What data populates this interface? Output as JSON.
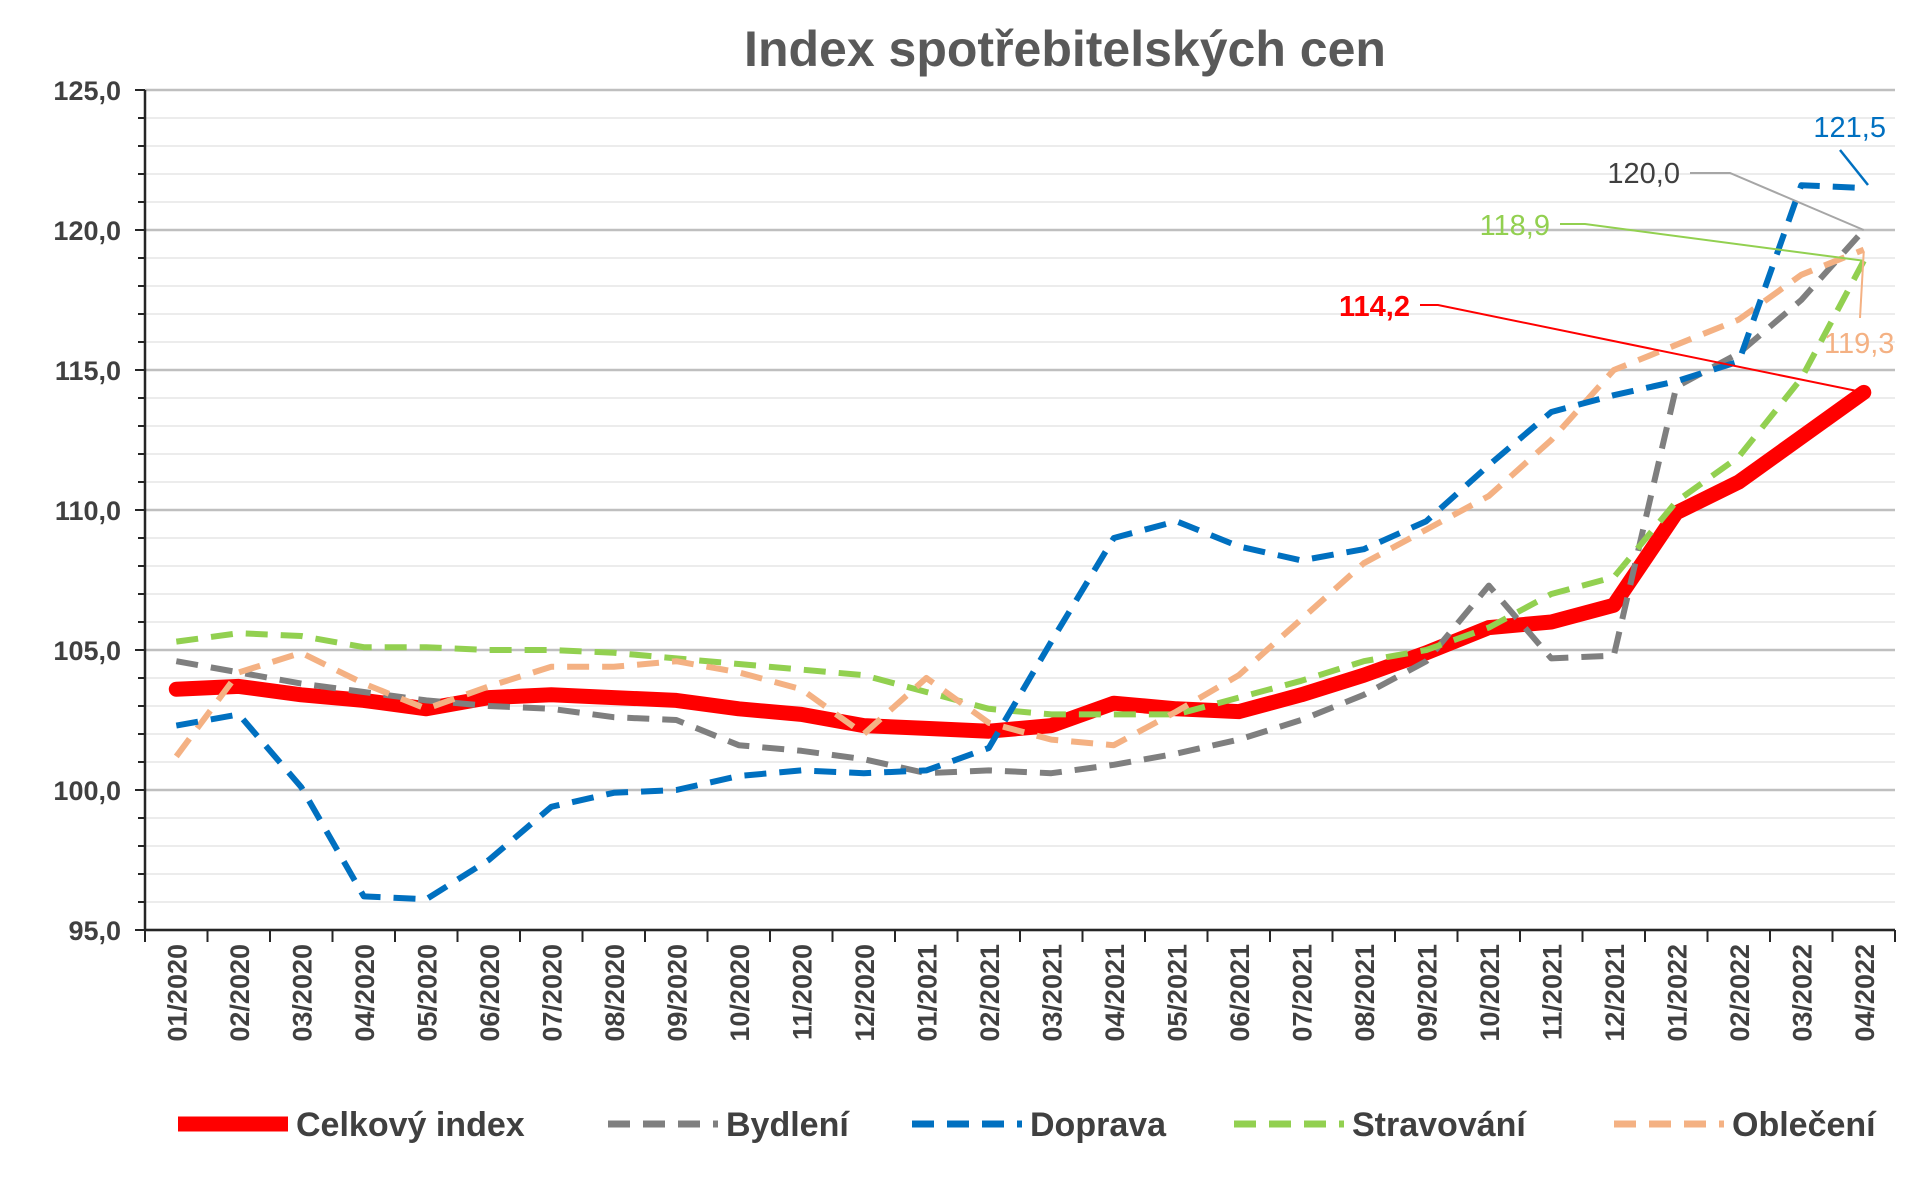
{
  "chart_data": {
    "type": "line",
    "title": "Index spotřebitelských cen",
    "xlabel": "",
    "ylabel": "",
    "ylim": [
      95,
      125
    ],
    "y_ticks": [
      "95,0",
      "100,0",
      "105,0",
      "110,0",
      "115,0",
      "120,0",
      "125,0"
    ],
    "y_tick_values": [
      95,
      100,
      105,
      110,
      115,
      120,
      125
    ],
    "grid": "horizontal major and minor gridlines",
    "legend_position": "bottom",
    "categories": [
      "01/2020",
      "02/2020",
      "03/2020",
      "04/2020",
      "05/2020",
      "06/2020",
      "07/2020",
      "08/2020",
      "09/2020",
      "10/2020",
      "11/2020",
      "12/2020",
      "01/2021",
      "02/2021",
      "03/2021",
      "04/2021",
      "05/2021",
      "06/2021",
      "07/2021",
      "08/2021",
      "09/2021",
      "10/2021",
      "11/2021",
      "12/2021",
      "01/2022",
      "02/2022",
      "03/2022",
      "04/2022"
    ],
    "series": [
      {
        "name": "Celkový index",
        "color": "#ff0000",
        "style": "solid",
        "values": [
          103.6,
          103.7,
          103.4,
          103.2,
          102.9,
          103.3,
          103.4,
          103.3,
          103.2,
          102.9,
          102.7,
          102.3,
          102.2,
          102.1,
          102.3,
          103.1,
          102.9,
          102.8,
          103.4,
          104.1,
          104.9,
          105.8,
          106.0,
          106.6,
          109.9,
          111.0,
          112.6,
          114.2
        ]
      },
      {
        "name": "Bydlení",
        "color": "#7f7f7f",
        "style": "dashed",
        "values": [
          104.6,
          104.2,
          103.8,
          103.5,
          103.2,
          103.0,
          102.9,
          102.6,
          102.5,
          101.6,
          101.4,
          101.1,
          100.6,
          100.7,
          100.6,
          100.9,
          101.3,
          101.8,
          102.5,
          103.4,
          104.6,
          107.3,
          104.7,
          104.8,
          114.4,
          115.6,
          117.5,
          120.0
        ]
      },
      {
        "name": "Doprava",
        "color": "#0070c0",
        "style": "dashed",
        "values": [
          102.3,
          102.7,
          100.1,
          96.2,
          96.1,
          97.5,
          99.4,
          99.9,
          100.0,
          100.5,
          100.7,
          100.6,
          100.7,
          101.5,
          105.3,
          109.0,
          109.6,
          108.7,
          108.2,
          108.6,
          109.6,
          111.6,
          113.5,
          114.1,
          114.6,
          115.3,
          121.6,
          121.5
        ]
      },
      {
        "name": "Stravování",
        "color": "#92d050",
        "style": "dashed",
        "values": [
          105.3,
          105.6,
          105.5,
          105.1,
          105.1,
          105.0,
          105.0,
          104.9,
          104.7,
          104.5,
          104.3,
          104.1,
          103.5,
          102.9,
          102.7,
          102.7,
          102.7,
          103.3,
          103.9,
          104.6,
          105.0,
          105.8,
          107.0,
          107.6,
          110.3,
          111.9,
          114.7,
          118.9
        ]
      },
      {
        "name": "Oblečení",
        "color": "#f4b183",
        "style": "dashed",
        "values": [
          101.2,
          104.2,
          104.9,
          103.8,
          102.9,
          103.7,
          104.4,
          104.4,
          104.6,
          104.2,
          103.6,
          102.0,
          104.0,
          102.4,
          101.8,
          101.6,
          102.8,
          104.1,
          106.1,
          108.1,
          109.3,
          110.5,
          112.5,
          115.0,
          115.9,
          116.8,
          118.4,
          119.3
        ]
      }
    ],
    "annotations": [
      {
        "text": "121,5",
        "series": "Doprava",
        "color": "#0070c0"
      },
      {
        "text": "120,0",
        "series": "Bydlení",
        "color": "#404040"
      },
      {
        "text": "118,9",
        "series": "Stravování",
        "color": "#92d050"
      },
      {
        "text": "114,2",
        "series": "Celkový index",
        "color": "#ff0000",
        "bold": true
      },
      {
        "text": "119,3",
        "series": "Oblečení",
        "color": "#f4b183"
      }
    ]
  }
}
